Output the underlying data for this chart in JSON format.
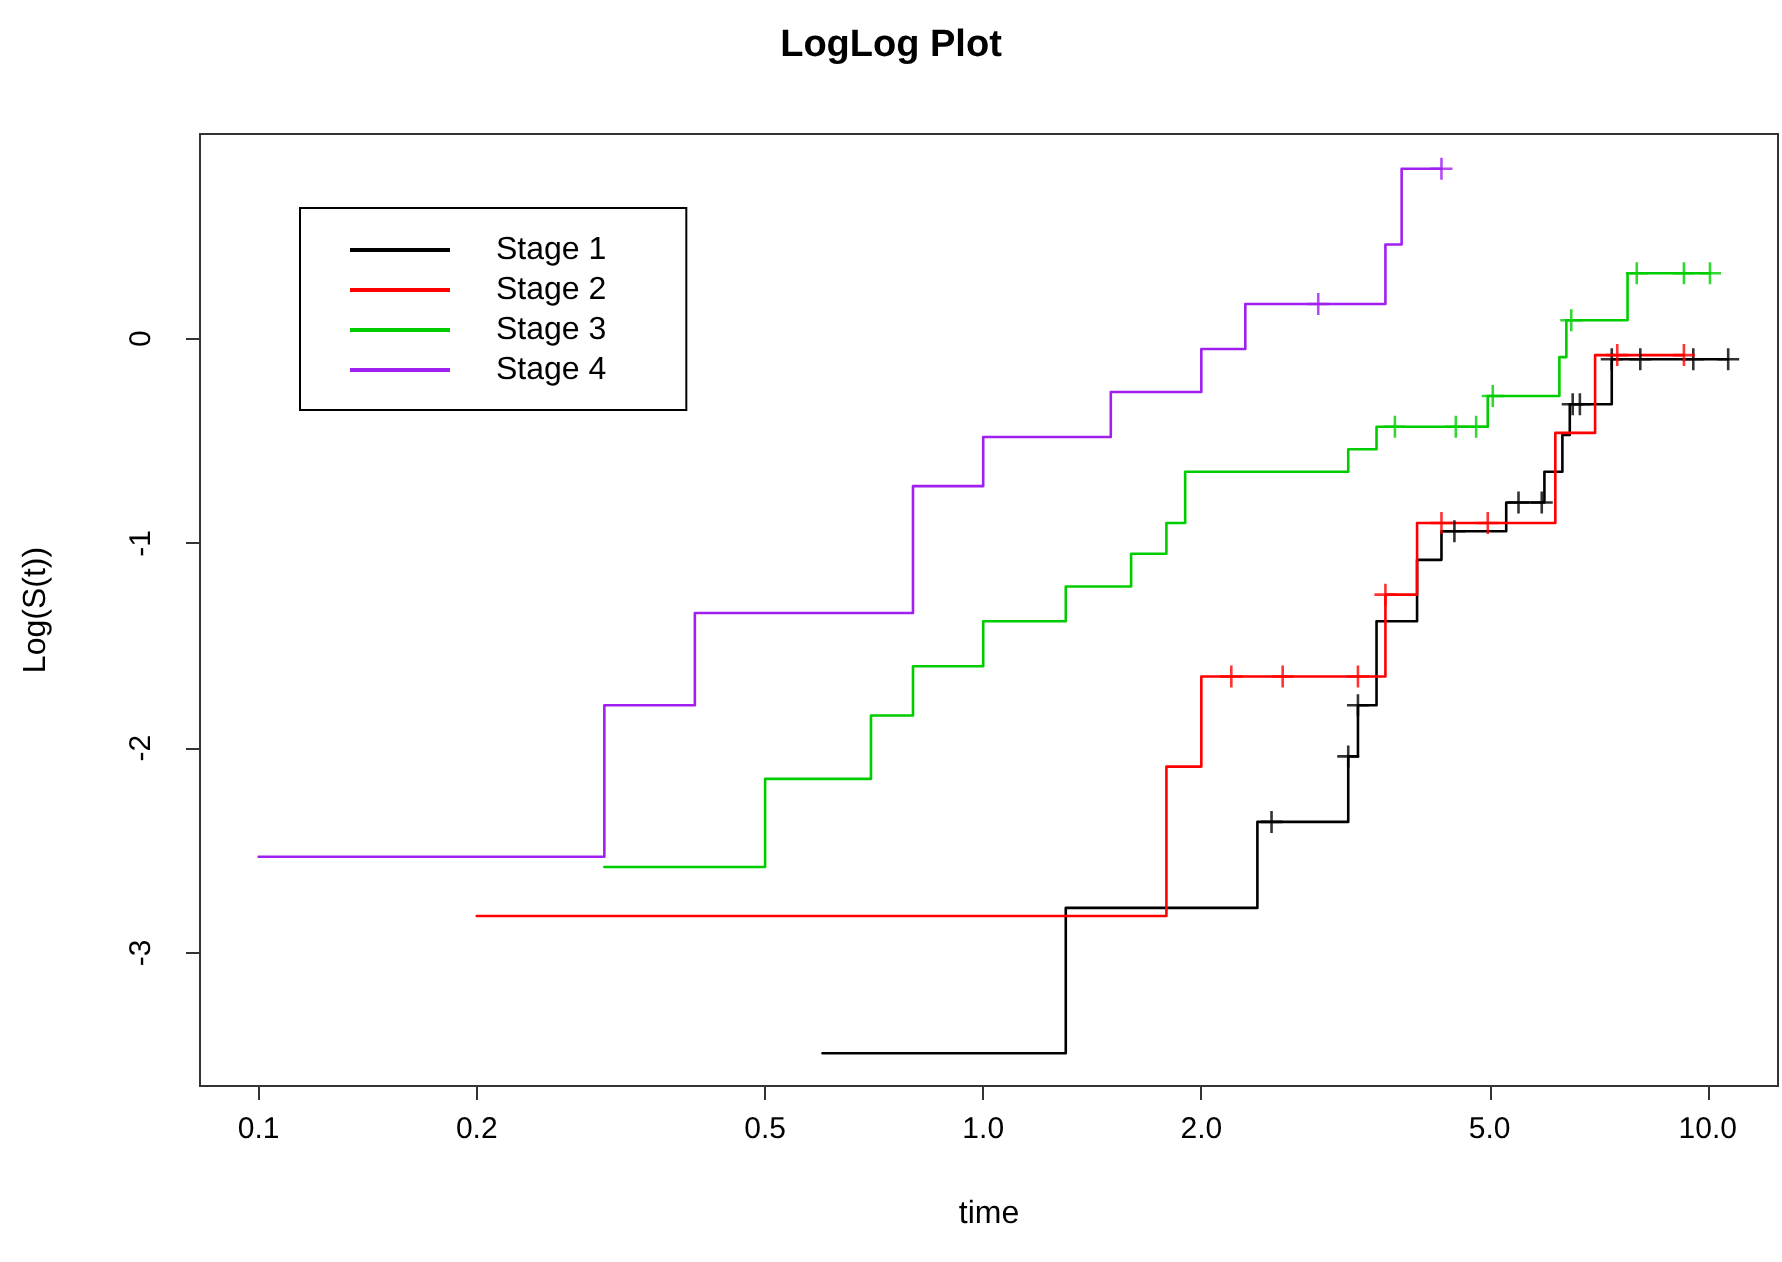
{
  "chart_data": {
    "type": "step",
    "title": "LogLog Plot",
    "xlabel": "time",
    "ylabel": "Log(S(t))",
    "log": "x",
    "grid": false,
    "legend": "top left",
    "marker": "none",
    "xlim": [
      0.083,
      12.5
    ],
    "ylim": [
      -3.65,
      1.0
    ],
    "xticks": [
      0.1,
      0.2,
      0.5,
      {
        "value": 1,
        "label": "1.0"
      },
      {
        "value": 2,
        "label": "2.0"
      },
      {
        "value": 5,
        "label": "5.0"
      },
      {
        "value": 10,
        "label": "10.0"
      }
    ],
    "yticks": [
      -3,
      -2,
      -1,
      0
    ],
    "series": [
      {
        "name": "Stage 1",
        "color": "#000000",
        "x": [
          0.6,
          1.3,
          2.39,
          3.19,
          3.29,
          3.49,
          3.97,
          4.29,
          5.27,
          5.95,
          6.3,
          6.45,
          7.37,
          10.67
        ],
        "values": [
          -3.49,
          -2.78,
          -2.36,
          -2.04,
          -1.79,
          -1.38,
          -1.08,
          -0.94,
          -0.8,
          -0.65,
          -0.47,
          -0.32,
          -0.1,
          -0.1
        ]
      },
      {
        "name": "Stage 2",
        "color": "#ff0000",
        "x": [
          0.2,
          1.79,
          2.0,
          3.59,
          3.97,
          6.16,
          6.99,
          9.27
        ],
        "values": [
          -2.82,
          -2.09,
          -1.65,
          -1.25,
          -0.9,
          -0.46,
          -0.08,
          -0.08
        ]
      },
      {
        "name": "Stage 3",
        "color": "#00cd00",
        "x": [
          0.3,
          0.5,
          0.7,
          0.8,
          1.0,
          1.3,
          1.6,
          1.79,
          1.9,
          3.19,
          3.49,
          4.97,
          6.24,
          6.38,
          7.75,
          10.07
        ],
        "values": [
          -2.58,
          -2.15,
          -1.84,
          -1.6,
          -1.38,
          -1.21,
          -1.05,
          -0.9,
          -0.65,
          -0.54,
          -0.43,
          -0.28,
          -0.09,
          0.09,
          0.32,
          0.32
        ]
      },
      {
        "name": "Stage 4",
        "color": "#a020f0",
        "x": [
          0.1,
          0.3,
          0.4,
          0.8,
          1.0,
          1.5,
          2.0,
          2.3,
          3.59,
          3.78,
          4.29
        ],
        "values": [
          -2.53,
          -1.79,
          -1.34,
          -0.72,
          -0.48,
          -0.26,
          -0.05,
          0.17,
          0.46,
          0.83,
          0.83
        ]
      },
      {
        "type": "scatter",
        "marker": "cross",
        "color": "#000000",
        "x": [
          2.5,
          3.19,
          3.29,
          4.47,
          5.48,
          5.9,
          6.51,
          6.66,
          7.37,
          8.07,
          9.55,
          10.67
        ],
        "values": [
          -2.36,
          -2.04,
          -1.79,
          -0.94,
          -0.8,
          -0.8,
          -0.32,
          -0.32,
          -0.1,
          -0.1,
          -0.1,
          -0.1
        ]
      },
      {
        "type": "scatter",
        "marker": "cross",
        "color": "#ff0000",
        "x": [
          2.2,
          2.59,
          3.29,
          3.59,
          4.29,
          4.97,
          7.5,
          9.27
        ],
        "values": [
          -1.65,
          -1.65,
          -1.65,
          -1.25,
          -0.9,
          -0.9,
          -0.08,
          -0.08
        ]
      },
      {
        "type": "scatter",
        "marker": "cross",
        "color": "#00cd00",
        "x": [
          3.7,
          4.49,
          4.79,
          5.05,
          6.48,
          7.98,
          9.27,
          10.07
        ],
        "values": [
          -0.43,
          -0.43,
          -0.43,
          -0.28,
          0.09,
          0.32,
          0.32,
          0.32
        ]
      },
      {
        "type": "scatter",
        "marker": "cross",
        "color": "#a020f0",
        "x": [
          2.9,
          4.29
        ],
        "values": [
          0.17,
          0.83
        ]
      }
    ]
  }
}
